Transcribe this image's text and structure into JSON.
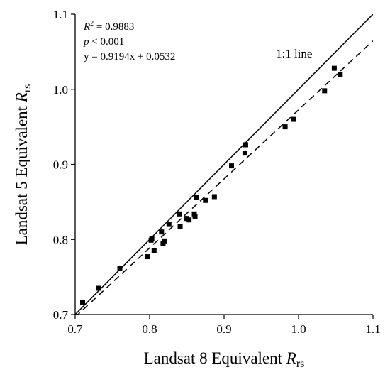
{
  "chart_data": {
    "type": "scatter",
    "xlabel": "Landsat 8 Equivalent",
    "xlabel_sub": "R",
    "xlabel_subsub": "rs",
    "ylabel": "Landsat 5 Equivalent",
    "ylabel_sub": "R",
    "ylabel_subsub": "rs",
    "xlim": [
      0.7,
      1.1
    ],
    "ylim": [
      0.7,
      1.1
    ],
    "xticks": [
      "0.7",
      "0.8",
      "0.9",
      "1.0",
      "1.1"
    ],
    "yticks": [
      "0.7",
      "0.8",
      "0.9",
      "1.0",
      "1.1"
    ],
    "grid": false,
    "stats": {
      "r2_symbol": "R",
      "r2_sup": "2",
      "r2_value": " = 0.9883",
      "p_symbol": "p",
      "p_value": " < 0.001",
      "equation": "y = 0.9194x + 0.0532"
    },
    "one_to_one_label": "1:1 line",
    "fit": {
      "slope": 0.9194,
      "intercept": 0.0532,
      "style": "dashed"
    },
    "identity_line": {
      "style": "solid"
    },
    "points": [
      {
        "x": 0.71,
        "y": 0.716
      },
      {
        "x": 0.731,
        "y": 0.735
      },
      {
        "x": 0.76,
        "y": 0.761
      },
      {
        "x": 0.797,
        "y": 0.777
      },
      {
        "x": 0.802,
        "y": 0.799
      },
      {
        "x": 0.803,
        "y": 0.801
      },
      {
        "x": 0.806,
        "y": 0.785
      },
      {
        "x": 0.816,
        "y": 0.81
      },
      {
        "x": 0.818,
        "y": 0.795
      },
      {
        "x": 0.82,
        "y": 0.798
      },
      {
        "x": 0.826,
        "y": 0.82
      },
      {
        "x": 0.84,
        "y": 0.834
      },
      {
        "x": 0.841,
        "y": 0.817
      },
      {
        "x": 0.849,
        "y": 0.828
      },
      {
        "x": 0.853,
        "y": 0.826
      },
      {
        "x": 0.86,
        "y": 0.834
      },
      {
        "x": 0.861,
        "y": 0.831
      },
      {
        "x": 0.863,
        "y": 0.856
      },
      {
        "x": 0.875,
        "y": 0.852
      },
      {
        "x": 0.887,
        "y": 0.857
      },
      {
        "x": 0.91,
        "y": 0.898
      },
      {
        "x": 0.928,
        "y": 0.915
      },
      {
        "x": 0.929,
        "y": 0.926
      },
      {
        "x": 0.982,
        "y": 0.95
      },
      {
        "x": 0.993,
        "y": 0.96
      },
      {
        "x": 1.035,
        "y": 0.998
      },
      {
        "x": 1.048,
        "y": 1.028
      },
      {
        "x": 1.056,
        "y": 1.02
      }
    ]
  }
}
